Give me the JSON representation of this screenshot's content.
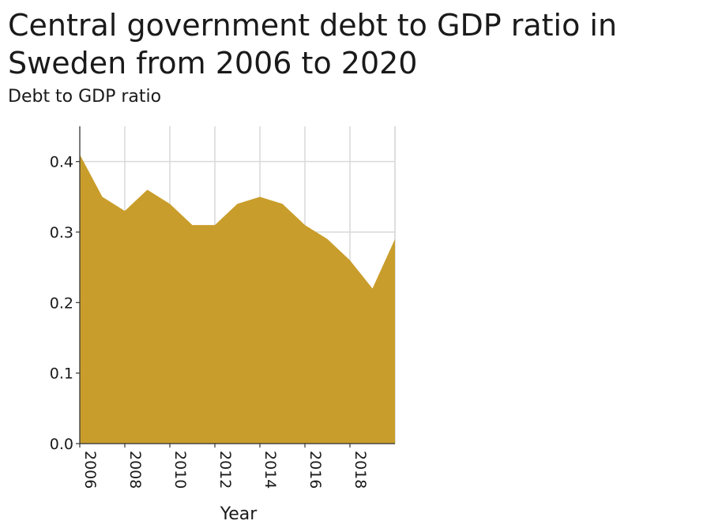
{
  "chart_data": {
    "type": "area",
    "title": "Central government debt to GDP ratio in Sweden from 2006 to 2020",
    "ylabel": "Debt to GDP ratio",
    "xlabel": "Year",
    "x": [
      2006,
      2007,
      2008,
      2009,
      2010,
      2011,
      2012,
      2013,
      2014,
      2015,
      2016,
      2017,
      2018,
      2019,
      2020
    ],
    "values": [
      0.41,
      0.35,
      0.33,
      0.36,
      0.34,
      0.31,
      0.31,
      0.34,
      0.35,
      0.34,
      0.31,
      0.29,
      0.26,
      0.22,
      0.29
    ],
    "xlim": [
      2006,
      2020
    ],
    "ylim": [
      0,
      0.45
    ],
    "xticks": [
      "2006",
      "2008",
      "2010",
      "2012",
      "2014",
      "2016",
      "2018"
    ],
    "yticks": [
      "0.0",
      "0.1",
      "0.2",
      "0.3",
      "0.4"
    ],
    "grid": true,
    "fill_color": "#c99d2b"
  }
}
